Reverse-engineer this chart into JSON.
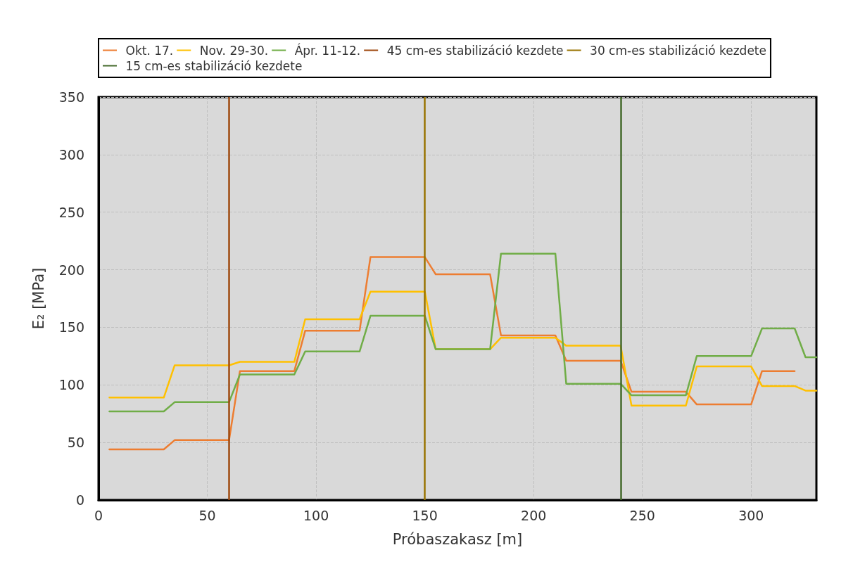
{
  "chart_data": {
    "type": "line",
    "xlabel": "Próbaszakasz [m]",
    "ylabel": "E₂ [MPa]",
    "x": [
      5,
      30,
      35,
      60,
      65,
      90,
      95,
      120,
      125,
      150,
      155,
      180,
      185,
      210,
      215,
      240,
      245,
      270,
      275,
      300,
      305,
      320,
      325,
      330
    ],
    "series": [
      {
        "name": "Okt. 17.",
        "color": "#ed7d31",
        "values": [
          44,
          44,
          52,
          52,
          112,
          112,
          147,
          147,
          211,
          211,
          196,
          196,
          143,
          143,
          121,
          121,
          94,
          94,
          83,
          83,
          112,
          112,
          null,
          null
        ]
      },
      {
        "name": "Nov. 29-30.",
        "color": "#ffc000",
        "values": [
          89,
          89,
          117,
          117,
          120,
          120,
          157,
          157,
          181,
          181,
          131,
          131,
          141,
          141,
          134,
          134,
          82,
          82,
          116,
          116,
          99,
          99,
          95,
          95
        ]
      },
      {
        "name": "Ápr. 11-12.",
        "color": "#70ad47",
        "values": [
          77,
          77,
          85,
          85,
          109,
          109,
          129,
          129,
          160,
          160,
          131,
          131,
          214,
          214,
          101,
          101,
          91,
          91,
          125,
          125,
          149,
          149,
          124,
          124
        ]
      }
    ],
    "ref_lines": [
      {
        "axis": "x",
        "value": 60,
        "label": "45 cm-es stabilizáció kezdete",
        "color": "#9e480e"
      },
      {
        "axis": "x",
        "value": 150,
        "label": "30 cm-es stabilizáció kezdete",
        "color": "#997300"
      },
      {
        "axis": "x",
        "value": 240,
        "label": "15 cm-es stabilizáció kezdete",
        "color": "#43682b"
      }
    ],
    "xlim": [
      0,
      330
    ],
    "xticks": [
      0,
      50,
      100,
      150,
      200,
      250,
      300
    ],
    "ylim": [
      0,
      350
    ],
    "yticks": [
      0,
      50,
      100,
      150,
      200,
      250,
      300,
      350
    ],
    "grid": true,
    "legend": "top",
    "marker": "none",
    "line_style": "solid"
  }
}
